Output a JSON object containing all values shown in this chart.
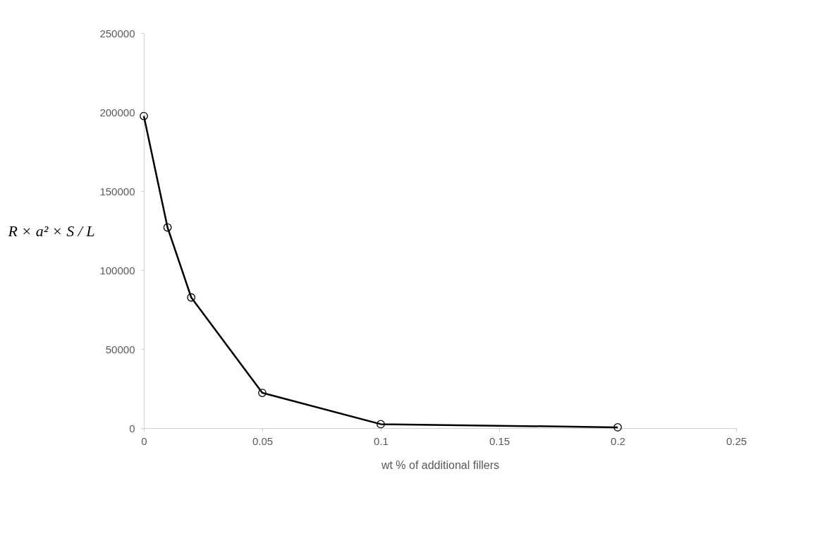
{
  "chart_data": {
    "type": "line",
    "xlabel": "wt % of additional fillers",
    "ylabel": "R × a² × S / L",
    "x": [
      0,
      0.01,
      0.02,
      0.05,
      0.1,
      0.2
    ],
    "series": [
      {
        "color": "#000000",
        "values": [
          197500,
          127000,
          82700,
          22300,
          2500,
          500
        ]
      }
    ],
    "xlim": [
      0,
      0.25
    ],
    "xticks": [
      0,
      0.05,
      0.1,
      0.15,
      0.2,
      0.25
    ],
    "ylim": [
      0,
      250000
    ],
    "yticks": [
      0,
      50000,
      100000,
      150000,
      200000,
      250000
    ],
    "grid": false,
    "marker": "circle",
    "line_style": "solid",
    "legend": false
  }
}
